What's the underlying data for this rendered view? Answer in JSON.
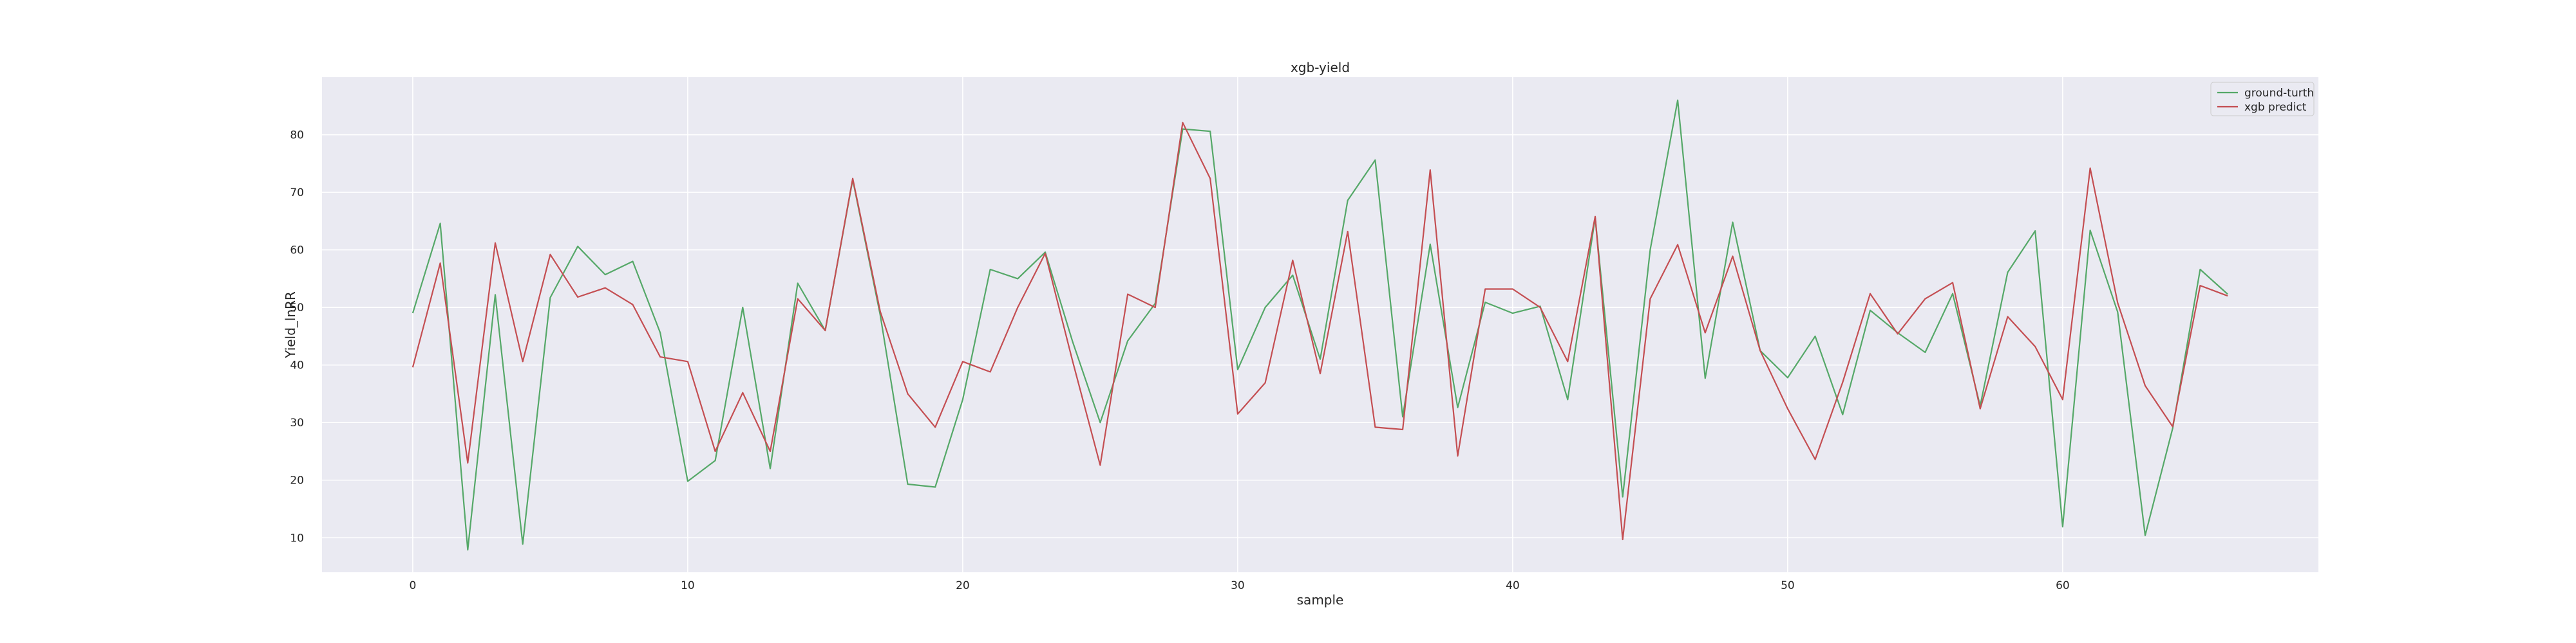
{
  "chart_data": {
    "type": "line",
    "title": "xgb-yield",
    "xlabel": "sample",
    "ylabel": "Yield_lnRR",
    "xlim": [
      -3.3,
      69.3
    ],
    "ylim": [
      4.0,
      90.0
    ],
    "xticks": [
      0,
      10,
      20,
      30,
      40,
      50,
      60
    ],
    "yticks": [
      10,
      20,
      30,
      40,
      50,
      60,
      70,
      80
    ],
    "grid": true,
    "background": "#eaeaf2",
    "legend_position": "top-right",
    "x": [
      0,
      1,
      2,
      3,
      4,
      5,
      6,
      7,
      8,
      9,
      10,
      11,
      12,
      13,
      14,
      15,
      16,
      17,
      18,
      19,
      20,
      21,
      22,
      23,
      24,
      25,
      26,
      27,
      28,
      29,
      30,
      31,
      32,
      33,
      34,
      35,
      36,
      37,
      38,
      39,
      40,
      41,
      42,
      43,
      44,
      45,
      46,
      47,
      48,
      49,
      50,
      51,
      52,
      53,
      54,
      55,
      56,
      57,
      58,
      59,
      60,
      61,
      62,
      63,
      64,
      65,
      66
    ],
    "series": [
      {
        "name": "ground-turth",
        "color": "#55a868",
        "values": [
          49.0,
          64.6,
          7.9,
          52.2,
          8.9,
          51.7,
          60.6,
          55.7,
          58.0,
          45.6,
          19.8,
          23.4,
          50.0,
          22.0,
          54.2,
          46.0,
          72.2,
          48.7,
          19.3,
          18.8,
          34.0,
          56.6,
          55.0,
          59.6,
          44.0,
          30.0,
          44.2,
          50.7,
          81.0,
          80.6,
          39.2,
          50.0,
          55.6,
          41.0,
          68.6,
          75.6,
          31.0,
          61.0,
          32.6,
          50.9,
          49.0,
          50.2,
          34.0,
          65.6,
          17.1,
          60.0,
          86.0,
          37.7,
          64.8,
          42.5,
          37.8,
          45.0,
          31.4,
          49.5,
          45.6,
          42.2,
          52.4,
          32.9,
          56.1,
          63.3,
          11.9,
          63.4,
          49.2,
          10.4,
          29.0,
          56.6,
          52.3
        ]
      },
      {
        "name": "xgb predict",
        "color": "#c44e52",
        "values": [
          39.6,
          57.7,
          23.0,
          61.2,
          40.6,
          59.2,
          51.8,
          53.4,
          50.5,
          41.4,
          40.6,
          25.0,
          35.2,
          25.0,
          51.5,
          46.0,
          72.4,
          49.3,
          35.0,
          29.2,
          40.6,
          38.8,
          50.0,
          59.4,
          40.6,
          22.6,
          52.3,
          50.0,
          82.1,
          72.4,
          31.5,
          36.9,
          58.2,
          38.5,
          63.2,
          29.2,
          28.8,
          73.9,
          24.2,
          53.2,
          53.2,
          50.0,
          40.6,
          65.8,
          9.7,
          51.5,
          60.9,
          45.6,
          58.9,
          42.5,
          32.4,
          23.6,
          37.0,
          52.4,
          45.4,
          51.5,
          54.3,
          32.4,
          48.4,
          43.2,
          34.0,
          74.2,
          50.8,
          36.4,
          29.3,
          53.8,
          52.0
        ]
      }
    ]
  }
}
